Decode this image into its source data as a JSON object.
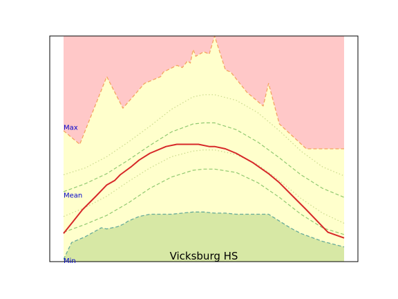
{
  "chart_data": {
    "type": "area",
    "title": "Vicksburg HS",
    "xlabel": "",
    "ylabel": "",
    "grid": false,
    "xlim": [
      0,
      52
    ],
    "ylim": [
      0,
      100
    ],
    "annotations": [
      {
        "text": "Max",
        "y": 59.5
      },
      {
        "text": "Mean",
        "y": 29.5
      },
      {
        "text": "Min",
        "y": 0.5
      }
    ],
    "colors": {
      "upper_region": "#ffc8c8",
      "middle_region": "#ffffcc",
      "lower_region": "#d7e8a5",
      "max_line": "#f4a460",
      "min_line": "#66aa99",
      "mean_line": "#d62728",
      "band_inner": "#8fc86f",
      "band_outer": "#c8d88a",
      "annotation": "#0000cc"
    },
    "series": [
      {
        "role": "max",
        "x": [
          0,
          3,
          8,
          11,
          15,
          18,
          18.5,
          21,
          22,
          23,
          23.5,
          24,
          24.5,
          26,
          27,
          28,
          30,
          31,
          32,
          34,
          37,
          38,
          40,
          45,
          48,
          52
        ],
        "values": [
          58,
          52,
          82,
          68,
          79,
          82,
          84,
          87,
          86,
          89,
          88,
          94,
          91,
          93,
          92,
          100,
          85,
          84,
          81,
          75,
          69,
          79,
          61,
          50,
          50,
          50
        ]
      },
      {
        "role": "band_upper_outer",
        "x": [
          0,
          4,
          8,
          12,
          16,
          20,
          24,
          26,
          28,
          32,
          36,
          40,
          44,
          48,
          52
        ],
        "values": [
          38.5,
          41.5,
          46.5,
          53,
          60,
          67.5,
          73,
          74,
          74,
          71.5,
          66,
          58,
          49,
          42,
          38
        ]
      },
      {
        "role": "band_upper_inner",
        "x": [
          0,
          4,
          8,
          12,
          16,
          20,
          24,
          26,
          28,
          32,
          36,
          40,
          44,
          48,
          52
        ],
        "values": [
          31,
          34.5,
          39,
          45,
          51.5,
          57.5,
          61,
          61.5,
          61.5,
          58.5,
          53,
          46,
          38.5,
          32.5,
          28.5
        ]
      },
      {
        "role": "mean",
        "x": [
          0,
          1.5,
          3.5,
          6,
          8,
          9.5,
          10.5,
          12.5,
          14,
          16,
          19,
          21,
          23,
          25,
          27,
          28,
          30,
          32,
          35,
          38,
          40,
          42.5,
          45,
          49,
          52
        ],
        "values": [
          12.5,
          17,
          23,
          29,
          34,
          36,
          38.5,
          42,
          45,
          48,
          51,
          52,
          52,
          52,
          51,
          51,
          50,
          48,
          44,
          39,
          35,
          29,
          23,
          13,
          10.5
        ]
      },
      {
        "role": "band_lower_inner",
        "x": [
          0,
          4,
          8,
          12,
          16,
          20,
          24,
          26,
          28,
          32,
          36,
          40,
          44,
          48,
          52
        ],
        "values": [
          20,
          24,
          29,
          35.5,
          41.5,
          46.5,
          49,
          49.5,
          49.5,
          47.5,
          43,
          36,
          28,
          21.5,
          17
        ]
      },
      {
        "role": "band_lower_outer",
        "x": [
          0,
          4,
          8,
          12,
          16,
          20,
          24,
          26,
          28,
          32,
          36,
          40,
          44,
          48,
          52
        ],
        "values": [
          13,
          16.5,
          20.5,
          26,
          32.5,
          37.5,
          40.5,
          41,
          41,
          39.5,
          35,
          28.5,
          21,
          15,
          12
        ]
      },
      {
        "role": "min",
        "x": [
          0,
          1.5,
          4,
          7,
          8,
          10,
          11,
          12,
          14,
          16,
          20,
          24,
          26,
          28,
          30,
          32,
          35,
          38,
          40,
          42,
          44,
          48,
          52
        ],
        "values": [
          1,
          8.5,
          11,
          15,
          14.5,
          15.5,
          16.5,
          18,
          20,
          21,
          21,
          22,
          22,
          21.5,
          21.5,
          21,
          21,
          21,
          18,
          15,
          12.5,
          9,
          6.5
        ]
      }
    ]
  }
}
